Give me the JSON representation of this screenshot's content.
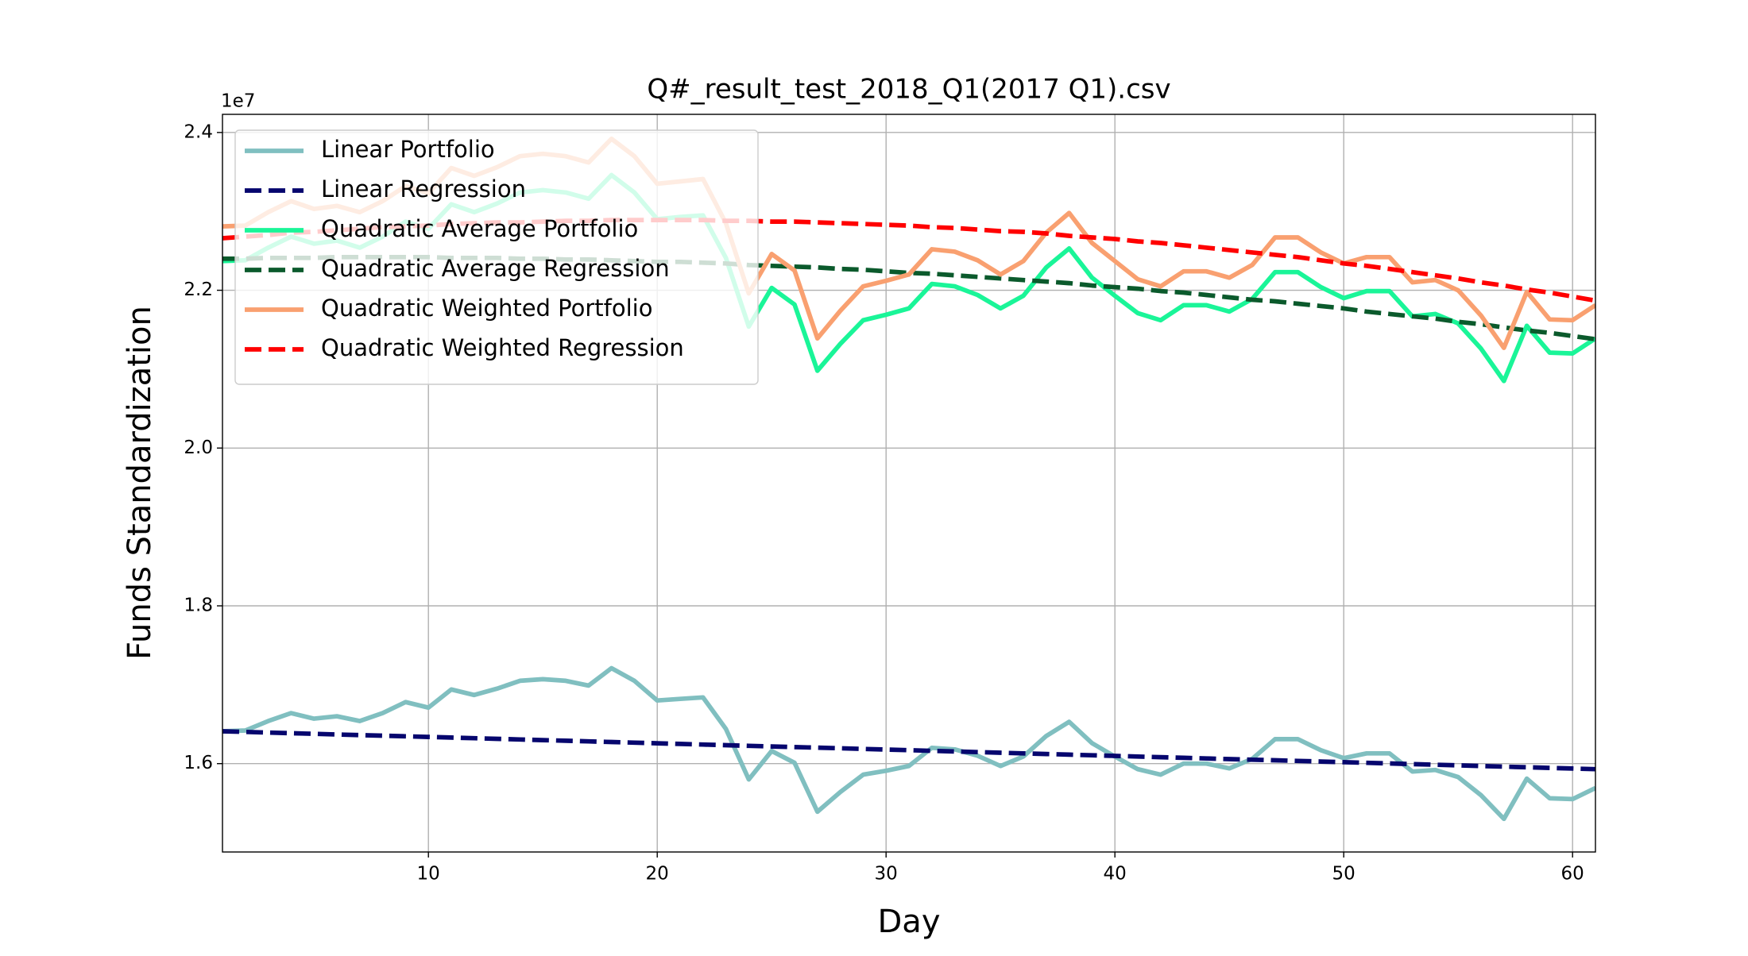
{
  "chart_data": {
    "type": "line",
    "title": "Q#_result_test_2018_Q1(2017 Q1).csv",
    "x_label": "Day",
    "y_label": "Funds Standardization",
    "y_offset_label": "1e7",
    "xlim": [
      1,
      61
    ],
    "xticks": [
      10,
      20,
      30,
      40,
      50,
      60
    ],
    "ylim": [
      1.488,
      2.423
    ],
    "yticks": [
      1.6,
      1.8,
      {
        "value": 2,
        "label": "2.0"
      },
      2.2,
      2.4
    ],
    "grid": true,
    "legend": "upper left",
    "x": [
      1,
      2,
      3,
      4,
      5,
      6,
      7,
      8,
      9,
      10,
      11,
      12,
      13,
      14,
      15,
      16,
      17,
      18,
      19,
      20,
      21,
      22,
      23,
      24,
      25,
      26,
      27,
      28,
      29,
      30,
      31,
      32,
      33,
      34,
      35,
      36,
      37,
      38,
      39,
      40,
      41,
      42,
      43,
      44,
      45,
      46,
      47,
      48,
      49,
      50,
      51,
      52,
      53,
      54,
      55,
      56,
      57,
      58,
      59,
      60,
      61
    ],
    "series": [
      {
        "name": "Linear Portfolio",
        "color": "#80bfc0",
        "dashed": false,
        "values": [
          1.641,
          1.642,
          1.654,
          1.664,
          1.657,
          1.66,
          1.654,
          1.664,
          1.678,
          1.671,
          1.694,
          1.687,
          1.695,
          1.705,
          1.707,
          1.705,
          1.699,
          1.721,
          1.705,
          1.68,
          1.682,
          1.684,
          1.644,
          1.58,
          1.616,
          1.601,
          1.539,
          1.564,
          1.586,
          1.591,
          1.597,
          1.62,
          1.618,
          1.61,
          1.597,
          1.609,
          1.635,
          1.653,
          1.626,
          1.609,
          1.593,
          1.586,
          1.6,
          1.6,
          1.594,
          1.606,
          1.631,
          1.631,
          1.617,
          1.607,
          1.613,
          1.613,
          1.59,
          1.592,
          1.583,
          1.56,
          1.53,
          1.581,
          1.556,
          1.555,
          1.569
        ]
      },
      {
        "name": "Linear Regression",
        "color": "#06066e",
        "dashed": true,
        "values": [
          1.641,
          1.6402,
          1.6394,
          1.6386,
          1.6378,
          1.637,
          1.6362,
          1.6354,
          1.6346,
          1.6338,
          1.633,
          1.6322,
          1.6314,
          1.6306,
          1.6298,
          1.629,
          1.6282,
          1.6274,
          1.6266,
          1.6258,
          1.625,
          1.6242,
          1.6234,
          1.6226,
          1.6218,
          1.621,
          1.6202,
          1.6194,
          1.6186,
          1.6178,
          1.617,
          1.6162,
          1.6154,
          1.6146,
          1.6138,
          1.613,
          1.6122,
          1.6114,
          1.6106,
          1.6098,
          1.609,
          1.6082,
          1.6074,
          1.6066,
          1.6058,
          1.605,
          1.6042,
          1.6034,
          1.6026,
          1.6018,
          1.601,
          1.6002,
          1.5994,
          1.5986,
          1.5978,
          1.597,
          1.5962,
          1.5954,
          1.5946,
          1.5938,
          1.593
        ]
      },
      {
        "name": "Quadratic Average Portfolio",
        "color": "#1af598",
        "dashed": false,
        "values": [
          2.237,
          2.238,
          2.254,
          2.268,
          2.259,
          2.263,
          2.254,
          2.268,
          2.287,
          2.278,
          2.309,
          2.299,
          2.31,
          2.324,
          2.327,
          2.324,
          2.316,
          2.346,
          2.324,
          2.29,
          2.293,
          2.295,
          2.241,
          2.154,
          2.203,
          2.182,
          2.098,
          2.132,
          2.162,
          2.169,
          2.177,
          2.208,
          2.205,
          2.194,
          2.177,
          2.193,
          2.229,
          2.253,
          2.216,
          2.193,
          2.171,
          2.162,
          2.181,
          2.181,
          2.173,
          2.189,
          2.223,
          2.223,
          2.204,
          2.19,
          2.199,
          2.199,
          2.167,
          2.17,
          2.158,
          2.126,
          2.085,
          2.155,
          2.121,
          2.12,
          2.139
        ]
      },
      {
        "name": "Quadratic Average Regression",
        "color": "#0b5a2c",
        "dashed": true,
        "values": [
          2.24,
          2.24,
          2.241,
          2.241,
          2.241,
          2.242,
          2.242,
          2.242,
          2.242,
          2.242,
          2.241,
          2.241,
          2.241,
          2.24,
          2.24,
          2.239,
          2.239,
          2.238,
          2.237,
          2.236,
          2.236,
          2.235,
          2.234,
          2.232,
          2.231,
          2.23,
          2.229,
          2.227,
          2.226,
          2.224,
          2.222,
          2.221,
          2.219,
          2.217,
          2.215,
          2.213,
          2.211,
          2.209,
          2.206,
          2.204,
          2.202,
          2.199,
          2.197,
          2.194,
          2.191,
          2.188,
          2.186,
          2.183,
          2.18,
          2.177,
          2.173,
          2.17,
          2.167,
          2.164,
          2.16,
          2.157,
          2.153,
          2.149,
          2.146,
          2.142,
          2.138
        ]
      },
      {
        "name": "Quadratic Weighted Portfolio",
        "color": "#f9a070",
        "dashed": false,
        "values": [
          2.281,
          2.282,
          2.299,
          2.313,
          2.303,
          2.307,
          2.299,
          2.313,
          2.332,
          2.323,
          2.355,
          2.345,
          2.356,
          2.37,
          2.373,
          2.37,
          2.362,
          2.392,
          2.37,
          2.335,
          2.338,
          2.341,
          2.285,
          2.196,
          2.246,
          2.225,
          2.139,
          2.174,
          2.205,
          2.212,
          2.22,
          2.252,
          2.249,
          2.238,
          2.22,
          2.237,
          2.273,
          2.298,
          2.26,
          2.237,
          2.214,
          2.205,
          2.224,
          2.224,
          2.216,
          2.232,
          2.267,
          2.267,
          2.248,
          2.234,
          2.242,
          2.242,
          2.21,
          2.213,
          2.2,
          2.168,
          2.127,
          2.198,
          2.163,
          2.162,
          2.181
        ]
      },
      {
        "name": "Quadratic Weighted Regression",
        "color": "#ff0000",
        "dashed": true,
        "values": [
          2.266,
          2.268,
          2.27,
          2.273,
          2.274,
          2.276,
          2.278,
          2.28,
          2.281,
          2.282,
          2.284,
          2.285,
          2.286,
          2.286,
          2.287,
          2.288,
          2.288,
          2.289,
          2.289,
          2.289,
          2.289,
          2.289,
          2.288,
          2.288,
          2.287,
          2.287,
          2.286,
          2.285,
          2.284,
          2.283,
          2.282,
          2.28,
          2.279,
          2.277,
          2.275,
          2.274,
          2.272,
          2.269,
          2.267,
          2.265,
          2.262,
          2.26,
          2.257,
          2.254,
          2.251,
          2.248,
          2.245,
          2.242,
          2.238,
          2.234,
          2.231,
          2.227,
          2.223,
          2.219,
          2.215,
          2.21,
          2.206,
          2.201,
          2.197,
          2.192,
          2.187
        ]
      }
    ]
  }
}
